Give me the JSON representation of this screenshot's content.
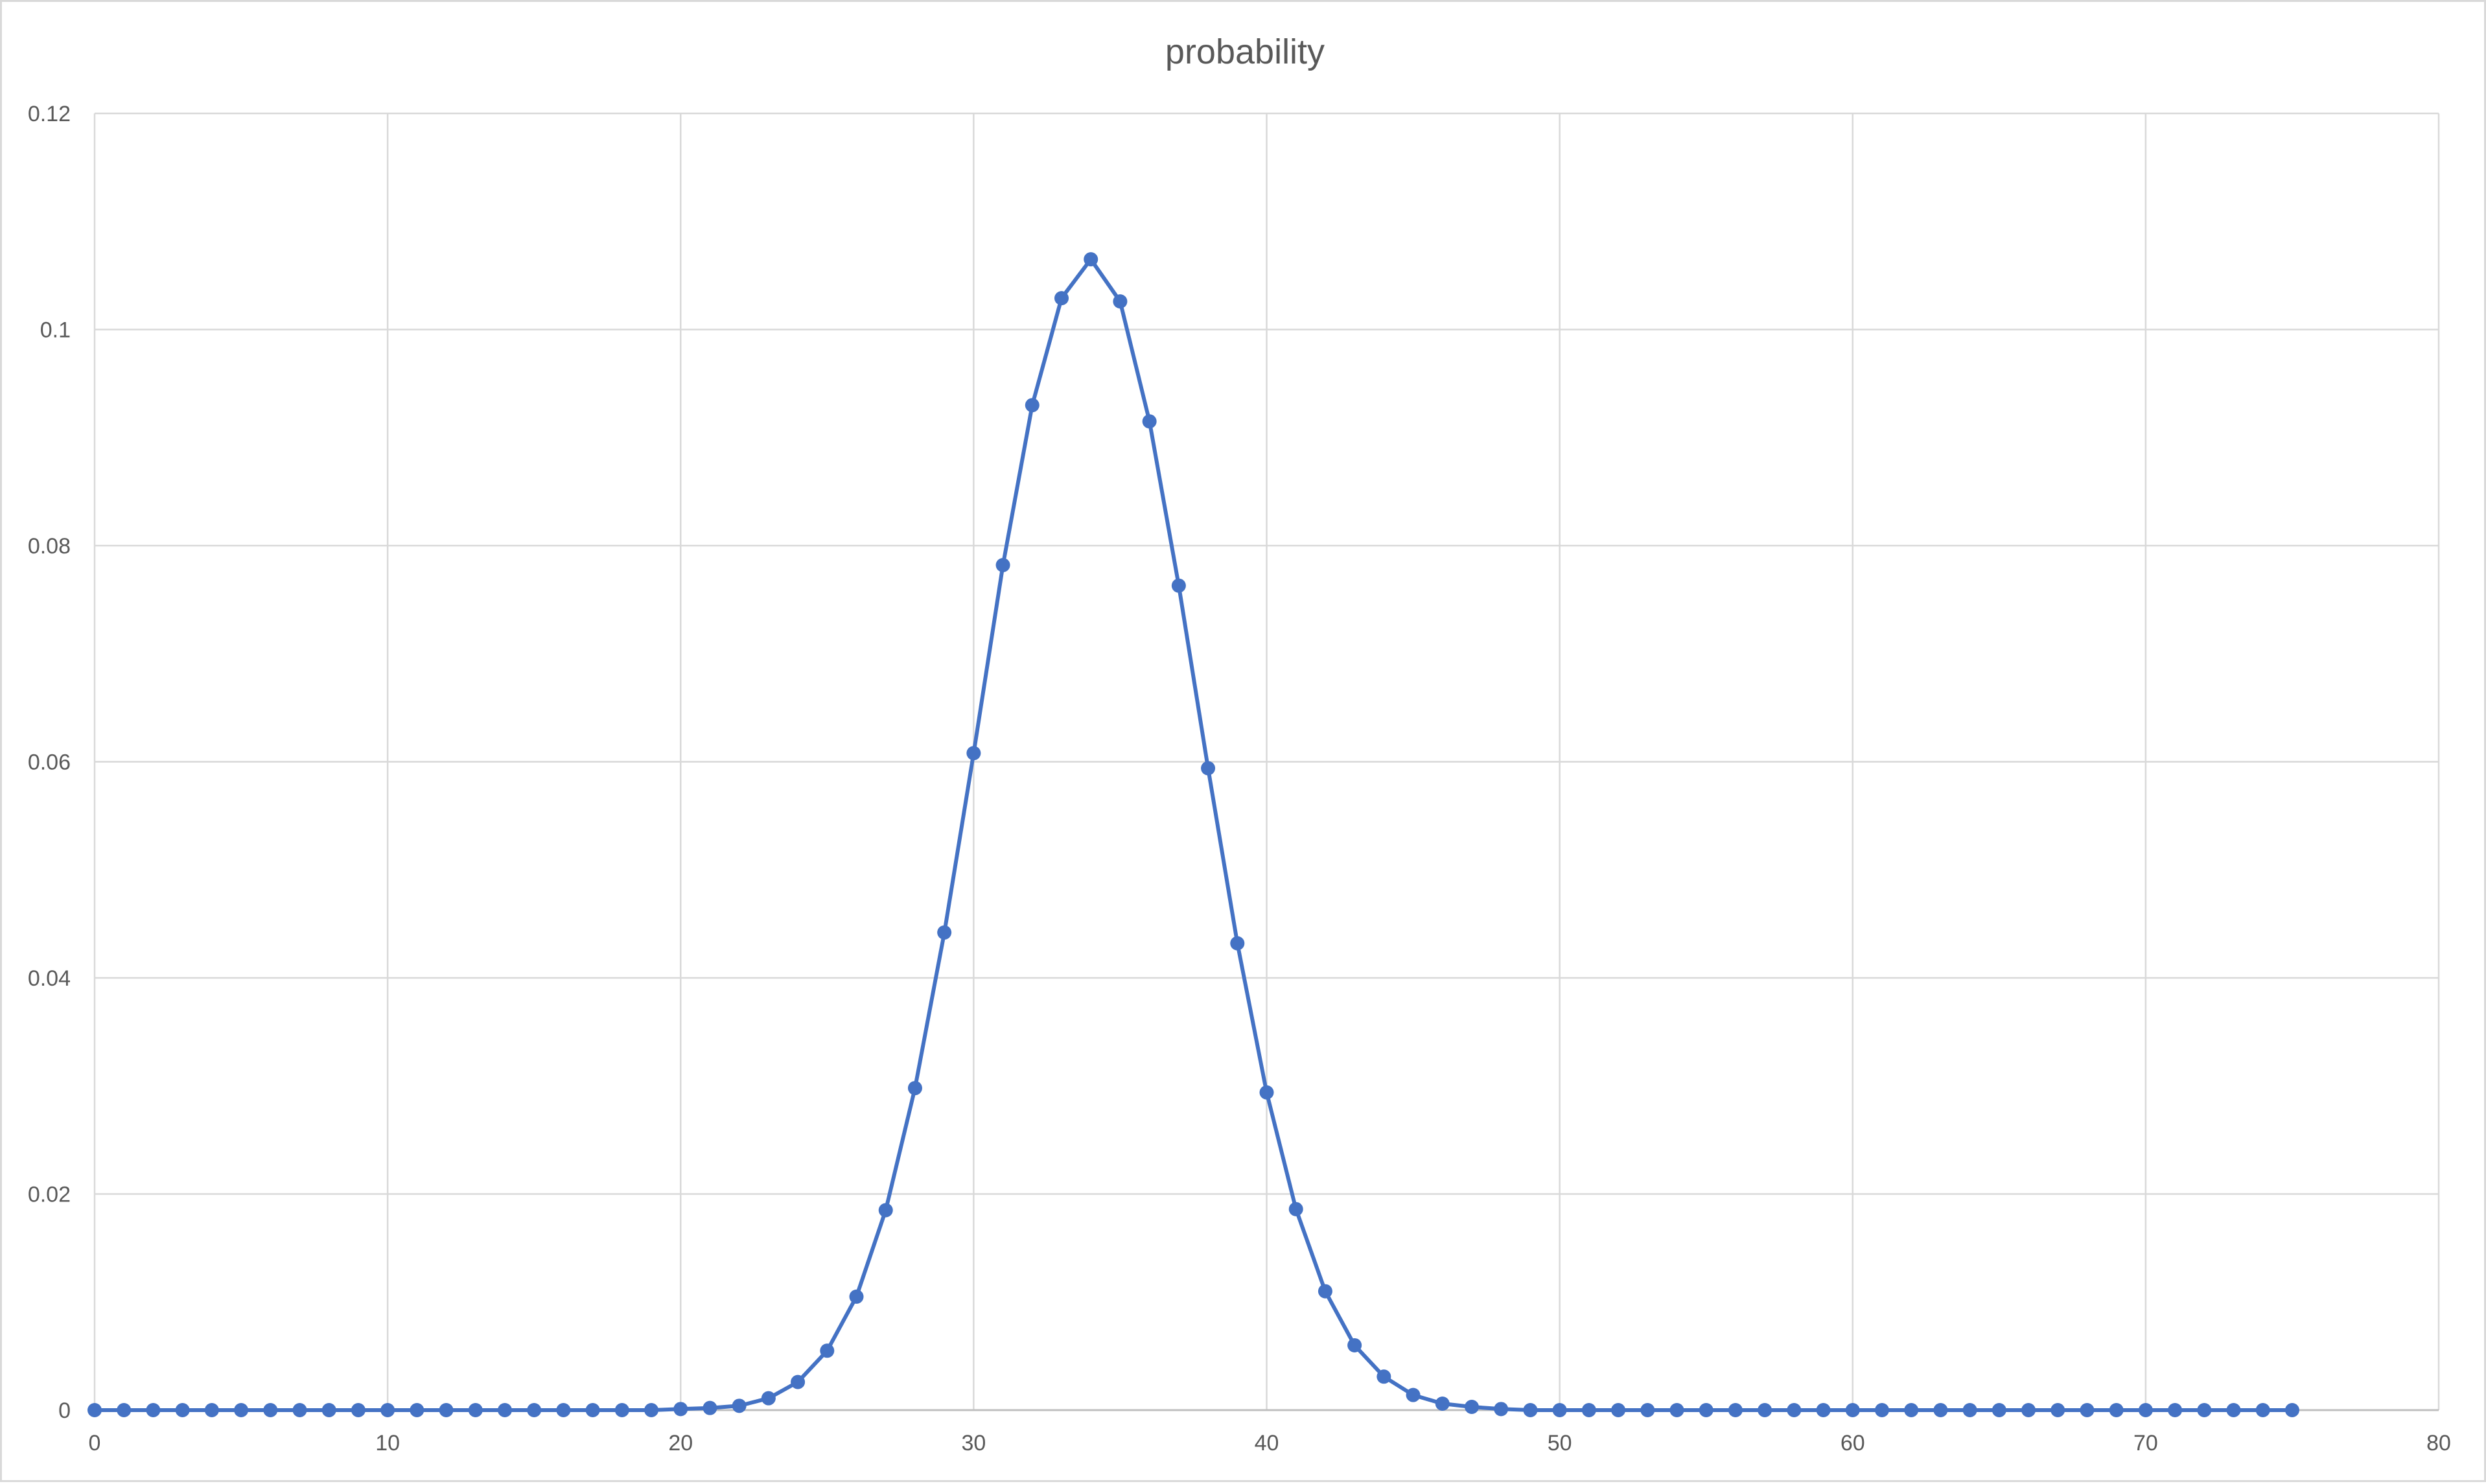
{
  "chart_data": {
    "type": "line",
    "title": "probability",
    "xlabel": "",
    "ylabel": "",
    "xlim": [
      0,
      80
    ],
    "ylim": [
      0,
      0.12
    ],
    "x_ticks": [
      0,
      10,
      20,
      30,
      40,
      50,
      60,
      70,
      80
    ],
    "y_ticks": [
      0,
      0.02,
      0.04,
      0.06,
      0.08,
      0.1,
      0.12
    ],
    "x_tick_labels": [
      "0",
      "10",
      "20",
      "30",
      "40",
      "50",
      "60",
      "70",
      "80"
    ],
    "y_tick_labels": [
      "0",
      "0.02",
      "0.04",
      "0.06",
      "0.08",
      "0.1",
      "0.12"
    ],
    "grid": true,
    "markers": true,
    "legend": "none",
    "series": [
      {
        "color": "#4472c4",
        "x": [
          0,
          1,
          2,
          3,
          4,
          5,
          6,
          7,
          8,
          9,
          10,
          11,
          12,
          13,
          14,
          15,
          16,
          17,
          18,
          19,
          20,
          21,
          22,
          23,
          24,
          25,
          26,
          27,
          28,
          29,
          30,
          31,
          32,
          33,
          34,
          35,
          36,
          37,
          38,
          39,
          40,
          41,
          42,
          43,
          44,
          45,
          46,
          47,
          48,
          49,
          50,
          51,
          52,
          53,
          54,
          55,
          56,
          57,
          58,
          59,
          60,
          61,
          62,
          63,
          64,
          65,
          66,
          67,
          68,
          69,
          70,
          71,
          72,
          73,
          74,
          75
        ],
        "values": [
          0,
          0,
          0,
          0,
          0,
          0,
          0,
          0,
          0,
          0,
          0,
          0,
          0,
          0,
          0,
          0,
          0,
          0,
          0,
          0,
          0.0001,
          0.0002,
          0.0004,
          0.0011,
          0.0026,
          0.0055,
          0.0105,
          0.0185,
          0.0298,
          0.0442,
          0.0608,
          0.0782,
          0.093,
          0.1029,
          0.1065,
          0.1026,
          0.0915,
          0.0763,
          0.0594,
          0.0432,
          0.0294,
          0.0186,
          0.011,
          0.006,
          0.0031,
          0.0014,
          0.0006,
          0.0003,
          0.0001,
          0,
          0,
          0,
          0,
          0,
          0,
          0,
          0,
          0,
          0,
          0,
          0,
          0,
          0,
          0,
          0,
          0,
          0,
          0,
          0,
          0,
          0,
          0,
          0,
          0,
          0,
          0
        ]
      }
    ]
  }
}
